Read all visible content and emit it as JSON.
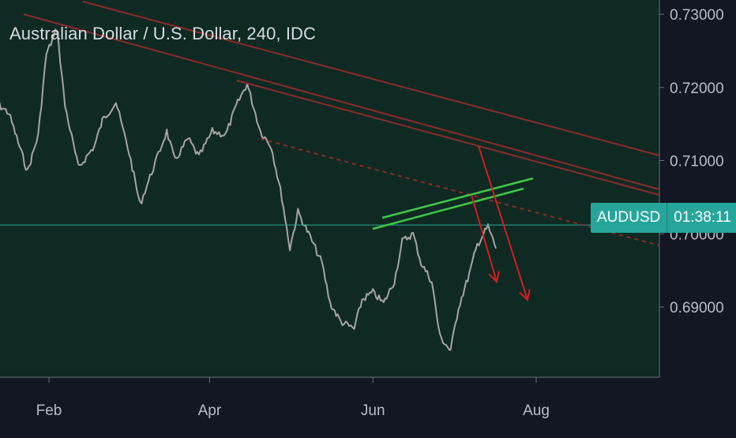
{
  "chart_data": {
    "type": "line",
    "title": "Australian Dollar / U.S. Dollar, 240, IDC",
    "symbol": "AUDUSD",
    "countdown": "01:38:11",
    "y_ticks": [
      "0.73000",
      "0.72000",
      "0.71000",
      "0.70000",
      "0.69000"
    ],
    "x_ticks": [
      "Feb",
      "Apr",
      "Jun",
      "Aug"
    ],
    "ylim": [
      0.6815,
      0.7325
    ],
    "last_price": 0.7012,
    "colors": {
      "background": "#131722",
      "plot_background": "#0f2a22",
      "price": "#b9b0b2",
      "resistance": "#8d2a2a",
      "channel": "#3fc94a",
      "arrows": "#d51d1d",
      "badge": "#26a69a"
    },
    "series": [
      {
        "x": [
          "2020-01-10",
          "2020-01-17",
          "2020-01-24",
          "2020-01-28",
          "2020-01-31",
          "2020-02-04",
          "2020-02-07",
          "2020-02-12",
          "2020-02-18",
          "2020-02-21",
          "2020-02-26",
          "2020-03-02",
          "2020-03-06",
          "2020-03-11",
          "2020-03-16",
          "2020-03-19",
          "2020-03-24",
          "2020-03-28",
          "2020-04-02",
          "2020-04-07",
          "2020-04-11",
          "2020-04-15",
          "2020-04-20",
          "2020-04-24",
          "2020-04-28",
          "2020-05-01",
          "2020-05-04",
          "2020-05-08",
          "2020-05-13",
          "2020-05-16",
          "2020-05-20",
          "2020-05-25",
          "2020-05-28",
          "2020-06-01",
          "2020-06-05",
          "2020-06-09",
          "2020-06-12",
          "2020-06-16",
          "2020-06-19",
          "2020-06-23",
          "2020-06-26",
          "2020-06-30",
          "2020-07-03",
          "2020-07-07",
          "2020-07-10",
          "2020-07-14",
          "2020-07-17"
        ],
        "values": [
          0.7185,
          0.7165,
          0.7085,
          0.7135,
          0.7245,
          0.728,
          0.7175,
          0.709,
          0.712,
          0.7155,
          0.718,
          0.711,
          0.704,
          0.709,
          0.714,
          0.71,
          0.713,
          0.7105,
          0.714,
          0.7135,
          0.7175,
          0.7205,
          0.714,
          0.712,
          0.705,
          0.698,
          0.703,
          0.7,
          0.696,
          0.6905,
          0.688,
          0.687,
          0.691,
          0.692,
          0.6905,
          0.6935,
          0.699,
          0.7,
          0.696,
          0.6935,
          0.686,
          0.684,
          0.69,
          0.6945,
          0.6985,
          0.701,
          0.698
        ]
      }
    ],
    "grid": false,
    "legend": "none"
  }
}
